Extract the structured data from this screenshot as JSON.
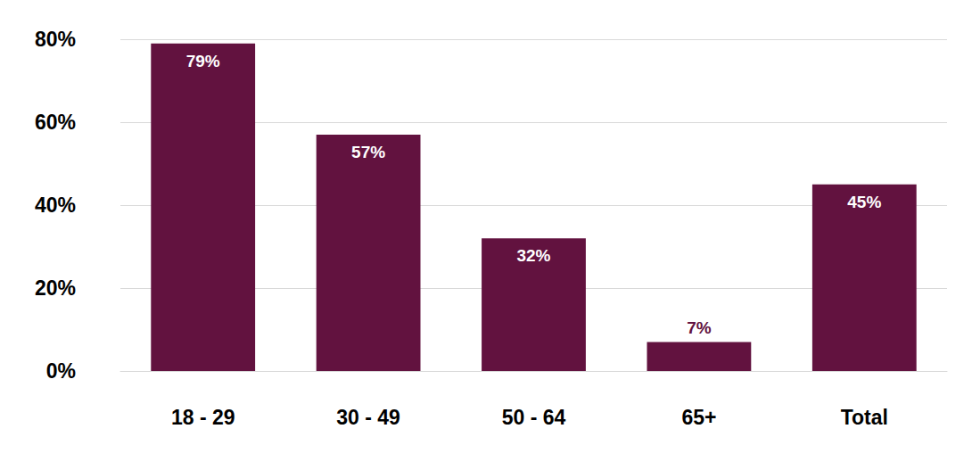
{
  "chart_data": {
    "type": "bar",
    "categories": [
      "18 - 29",
      "30 - 49",
      "50 - 64",
      "65+",
      "Total"
    ],
    "values": [
      79,
      57,
      32,
      7,
      45
    ],
    "value_labels": [
      "79%",
      "57%",
      "32%",
      "7%",
      "45%"
    ],
    "data_labels": true,
    "color": "#62123f",
    "ylim": [
      0,
      80
    ],
    "yticks": [
      {
        "value": 0,
        "label": "0%"
      },
      {
        "value": 20,
        "label": "20%"
      },
      {
        "value": 40,
        "label": "40%"
      },
      {
        "value": 60,
        "label": "60%"
      },
      {
        "value": 80,
        "label": "80%"
      }
    ],
    "grid": true
  }
}
